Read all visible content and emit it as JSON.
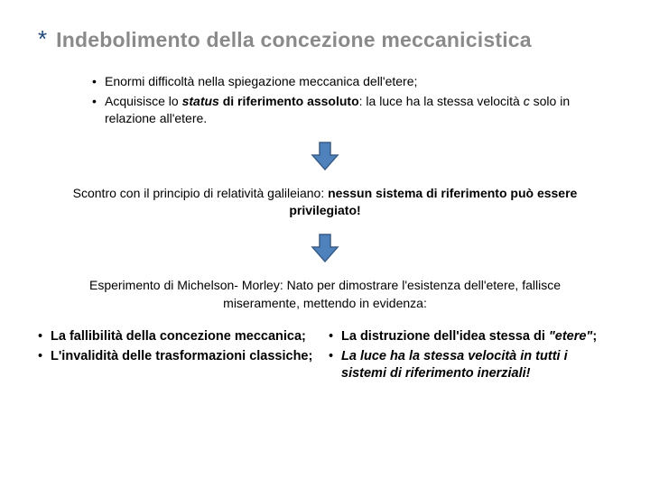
{
  "asterisk": "*",
  "title": "Indebolimento della concezione meccanicistica",
  "top_bullets": [
    {
      "html": "Enormi difficoltà nella spiegazione meccanica dell'etere;"
    },
    {
      "html": "Acquisisce lo <b><i>status</i> di riferimento assoluto</b>: la luce ha la stessa velocità <i>c</i> solo in relazione all'etere."
    }
  ],
  "arrow": {
    "fill": "#4f81bd",
    "stroke": "#385d8a",
    "width": 36,
    "height": 34
  },
  "mid_text": "Scontro con il principio di relatività galileiano: <b>nessun sistema di riferimento può essere privilegiato!</b>",
  "exp_text": "Esperimento di Michelson- Morley: Nato per dimostrare l'esistenza dell'etere, fallisce miseramente, mettendo in evidenza:",
  "left_col": [
    {
      "html": "<b>La fallibilità della concezione meccanica;</b>"
    },
    {
      "html": "<b>L'invalidità delle trasformazioni classiche;</b>"
    }
  ],
  "right_col": [
    {
      "html": "<b>La distruzione dell'idea stessa di <i>\"etere\"</i>;</b>"
    },
    {
      "html": "<b><i>La luce ha la stessa velocità in tutti i sistemi di riferimento inerziali!</i></b>"
    }
  ],
  "colors": {
    "title_color": "#8a8a8a",
    "asterisk_color": "#1f497d",
    "text_color": "#000000",
    "background": "#ffffff"
  },
  "typography": {
    "title_fontsize": 23,
    "body_fontsize": 14,
    "font_family": "Trebuchet MS"
  }
}
